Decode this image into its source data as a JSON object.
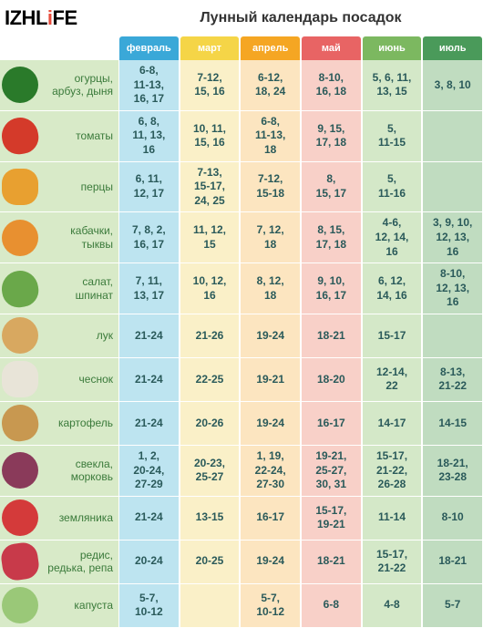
{
  "logo_parts": {
    "black1": "IZHL",
    "red": "i",
    "black2": "FE"
  },
  "title": "Лунный календарь посадок",
  "months": [
    {
      "label": "февраль",
      "header_color": "#3aa8d8",
      "col_color": "#bde4f0"
    },
    {
      "label": "март",
      "header_color": "#f5d547",
      "col_color": "#faf0c8"
    },
    {
      "label": "апрель",
      "header_color": "#f5a623",
      "col_color": "#fce5c0"
    },
    {
      "label": "май",
      "header_color": "#e86464",
      "col_color": "#f8d0c8"
    },
    {
      "label": "июнь",
      "header_color": "#7cb860",
      "col_color": "#d4e8c8"
    },
    {
      "label": "июль",
      "header_color": "#4a9a5a",
      "col_color": "#c0dcc0"
    }
  ],
  "crops": [
    {
      "label": "огурцы,\nарбуз, дыня",
      "veg_color": "#2a7a2a",
      "dates": [
        "6-8,\n11-13,\n16, 17",
        "7-12,\n15, 16",
        "6-12,\n18, 24",
        "8-10,\n16, 18",
        "5, 6, 11,\n13, 15",
        "3, 8, 10"
      ]
    },
    {
      "label": "томаты",
      "veg_color": "#d43a2a",
      "dates": [
        "6, 8,\n11, 13,\n16",
        "10, 11,\n15, 16",
        "6-8,\n11-13,\n18",
        "9, 15,\n17, 18",
        "5,\n11-15",
        ""
      ]
    },
    {
      "label": "перцы",
      "veg_color": "#e8a030",
      "dates": [
        "6, 11,\n12, 17",
        "7-13,\n15-17,\n24, 25",
        "7-12,\n15-18",
        "8,\n15, 17",
        "5,\n11-16",
        ""
      ]
    },
    {
      "label": "кабачки,\nтыквы",
      "veg_color": "#e89030",
      "dates": [
        "7, 8, 2,\n16, 17",
        "11, 12,\n15",
        "7, 12,\n18",
        "8, 15,\n17, 18",
        "4-6,\n12, 14,\n16",
        "3, 9, 10,\n12, 13,\n16"
      ]
    },
    {
      "label": "салат,\nшпинат",
      "veg_color": "#6aa84a",
      "dates": [
        "7, 11,\n13, 17",
        "10, 12,\n16",
        "8, 12,\n18",
        "9, 10,\n16, 17",
        "6, 12,\n14, 16",
        "8-10,\n12, 13,\n16"
      ]
    },
    {
      "label": "лук",
      "veg_color": "#d8a860",
      "dates": [
        "21-24",
        "21-26",
        "19-24",
        "18-21",
        "15-17",
        ""
      ]
    },
    {
      "label": "чеснок",
      "veg_color": "#e8e4d8",
      "dates": [
        "21-24",
        "22-25",
        "19-21",
        "18-20",
        "12-14,\n22",
        "8-13,\n21-22"
      ]
    },
    {
      "label": "картофель",
      "veg_color": "#c89850",
      "dates": [
        "21-24",
        "20-26",
        "19-24",
        "16-17",
        "14-17",
        "14-15"
      ]
    },
    {
      "label": "свекла,\nморковь",
      "veg_color": "#8a3a5a",
      "dates": [
        "1, 2,\n20-24,\n27-29",
        "20-23,\n25-27",
        "1, 19,\n22-24,\n27-30",
        "19-21,\n25-27,\n30, 31",
        "15-17,\n21-22,\n26-28",
        "18-21,\n23-28"
      ]
    },
    {
      "label": "земляника",
      "veg_color": "#d43a3a",
      "dates": [
        "21-24",
        "13-15",
        "16-17",
        "15-17,\n19-21",
        "11-14",
        "8-10"
      ]
    },
    {
      "label": "редис,\nредька, репа",
      "veg_color": "#c83a4a",
      "dates": [
        "20-24",
        "20-25",
        "19-24",
        "18-21",
        "15-17,\n21-22",
        "18-21"
      ]
    },
    {
      "label": "капуста",
      "veg_color": "#9ac878",
      "dates": [
        "5-7,\n10-12",
        "",
        "5-7,\n10-12",
        "6-8",
        "4-8",
        "5-7"
      ]
    }
  ],
  "label_cell_bg": "#d8eac8",
  "label_text_color": "#3a7a3a",
  "cell_text_color": "#2a5a5a"
}
